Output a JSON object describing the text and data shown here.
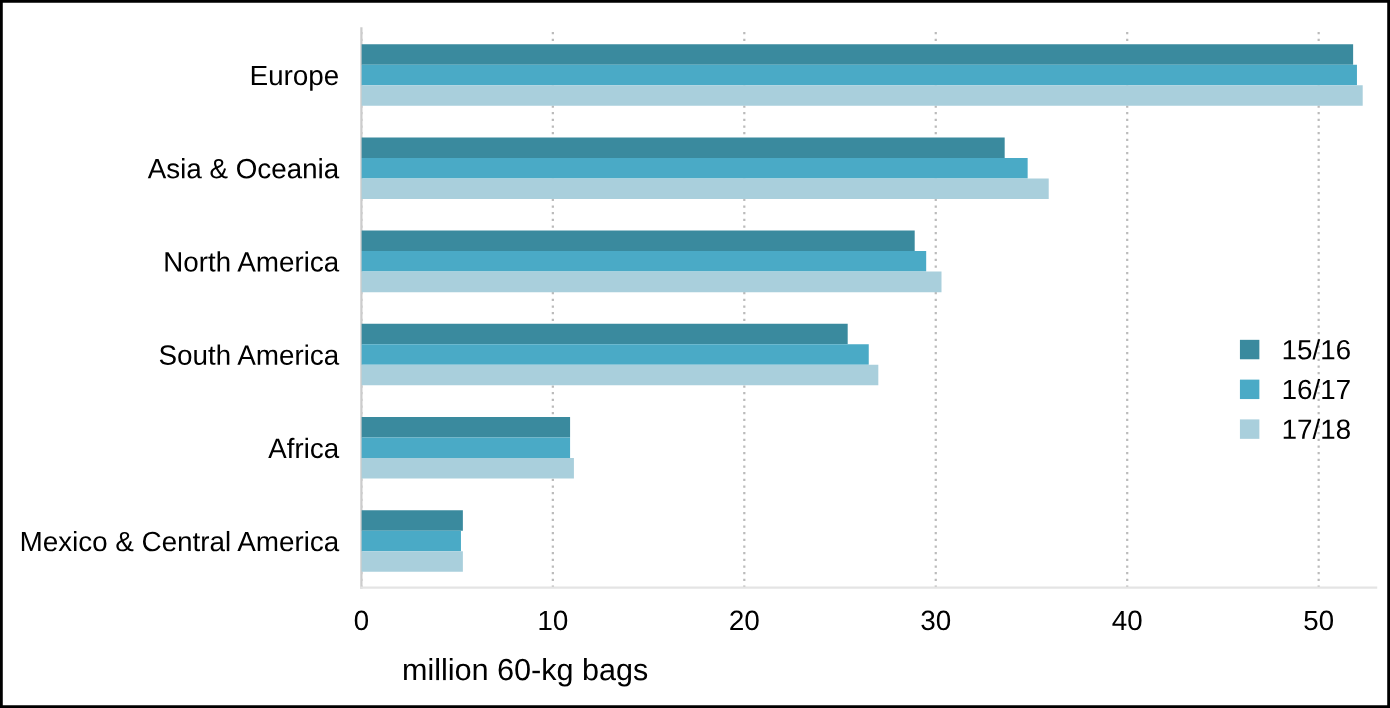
{
  "chart_data": {
    "type": "bar",
    "orientation": "horizontal",
    "xlabel": "million 60-kg bags",
    "categories": [
      "Europe",
      "Asia & Oceania",
      "North America",
      "South America",
      "Africa",
      "Mexico & Central America"
    ],
    "series": [
      {
        "name": "15/16",
        "color": "#3a8a9e",
        "values": [
          51.8,
          33.6,
          28.9,
          25.4,
          10.9,
          5.3
        ]
      },
      {
        "name": "16/17",
        "color": "#4aaac6",
        "values": [
          52.0,
          34.8,
          29.5,
          26.5,
          10.9,
          5.2
        ]
      },
      {
        "name": "17/18",
        "color": "#a9cfdc",
        "values": [
          52.3,
          35.9,
          30.3,
          27.0,
          11.1,
          5.3
        ]
      }
    ],
    "xlim": [
      0,
      53
    ],
    "xticks": [
      0,
      10,
      20,
      30,
      40,
      50
    ],
    "grid": "x",
    "legend": "right"
  }
}
